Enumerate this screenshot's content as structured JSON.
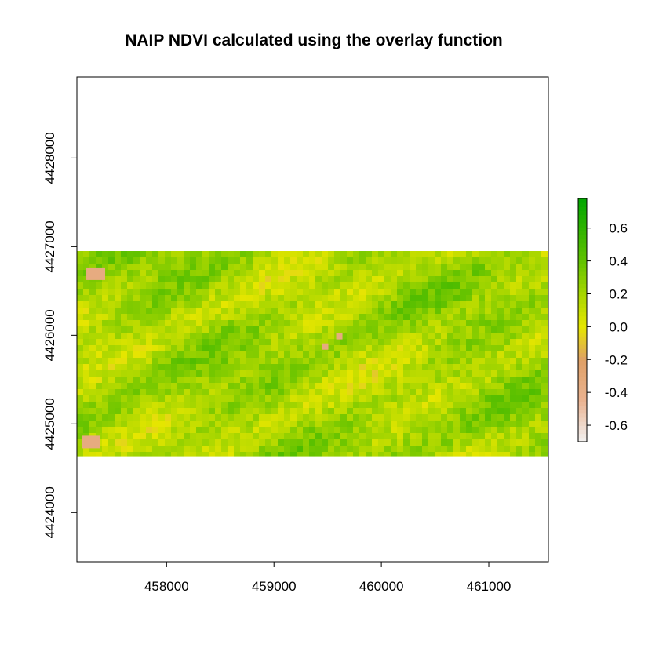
{
  "chart_data": {
    "type": "heatmap",
    "title": "NAIP NDVI calculated using the overlay function",
    "xlabel": "",
    "ylabel": "",
    "x_ticks": [
      458000,
      459000,
      460000,
      461000
    ],
    "y_ticks": [
      4424000,
      4425000,
      4426000,
      4427000,
      4428000
    ],
    "xlim": [
      457165,
      461555
    ],
    "ylim": [
      4423445,
      4428915
    ],
    "raster_extent": {
      "xmin": 457165,
      "xmax": 461555,
      "ymin": 4424635,
      "ymax": 4426950
    },
    "value_range": [
      -0.7,
      0.78
    ],
    "legend": {
      "position": "right",
      "ticks": [
        0.6,
        0.4,
        0.2,
        0.0,
        -0.2,
        -0.4,
        -0.6
      ],
      "tick_labels": [
        "0.6",
        "0.4",
        "0.2",
        "0.0",
        "-0.2",
        "-0.4",
        "-0.6"
      ]
    },
    "palette": [
      {
        "value": -0.7,
        "color": "#f2f2f2"
      },
      {
        "value": -0.45,
        "color": "#eab391"
      },
      {
        "value": -0.2,
        "color": "#dfa066"
      },
      {
        "value": 0.0,
        "color": "#e6e600"
      },
      {
        "value": 0.2,
        "color": "#a7d600"
      },
      {
        "value": 0.4,
        "color": "#62c200"
      },
      {
        "value": 0.78,
        "color": "#00a600"
      }
    ],
    "grid": false
  }
}
